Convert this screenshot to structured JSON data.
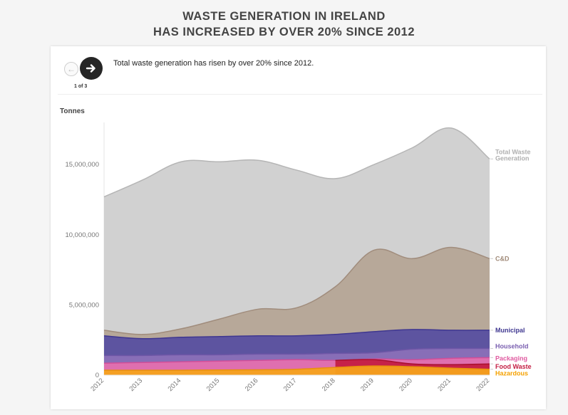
{
  "title": {
    "line1": "WASTE GENERATION IN IRELAND",
    "line2": "HAS INCREASED BY OVER 20% SINCE 2012"
  },
  "nav": {
    "prev_icon": "arrow-left-icon",
    "next_icon": "arrow-right-icon",
    "counter": "1 of 3"
  },
  "caption": "Total waste generation has risen by over 20% since 2012.",
  "chart_data": {
    "type": "area",
    "ylabel": "Tonnes",
    "xlabel": "",
    "ylim": [
      0,
      18000000
    ],
    "yticks": [
      0,
      5000000,
      10000000,
      15000000
    ],
    "ytick_labels": [
      "0",
      "5,000,000",
      "10,000,000",
      "15,000,000"
    ],
    "x": [
      "2012",
      "2013",
      "2014",
      "2015",
      "2016",
      "2017",
      "2018",
      "2019",
      "2020",
      "2021",
      "2022"
    ],
    "grid": false,
    "legend": "right-end labels",
    "series": [
      {
        "name": "Total Waste Generation",
        "color": "#cfcfcf",
        "line": "#b5b5b5",
        "values": [
          12700000,
          13900000,
          15200000,
          15200000,
          15300000,
          14600000,
          14000000,
          15000000,
          16200000,
          17600000,
          15400000
        ]
      },
      {
        "name": "C&D",
        "color": "#b5a596",
        "line": "#a08c7c",
        "values": [
          3200000,
          2900000,
          3300000,
          4000000,
          4700000,
          4800000,
          6300000,
          8900000,
          8300000,
          9100000,
          8300000
        ]
      },
      {
        "name": "Municipal",
        "color": "#574fa0",
        "line": "#3f3790",
        "values": [
          2800000,
          2600000,
          2700000,
          2750000,
          2800000,
          2800000,
          2900000,
          3100000,
          3250000,
          3200000,
          3200000
        ]
      },
      {
        "name": "Household",
        "color": "#8a70b8",
        "line": "#6e56a6",
        "values": [
          1400000,
          1400000,
          1450000,
          1450000,
          1500000,
          1500000,
          1550000,
          1600000,
          1850000,
          1900000,
          1900000
        ]
      },
      {
        "name": "Packaging",
        "color": "#e46fae",
        "line": "#d24e98",
        "values": [
          850000,
          900000,
          950000,
          1000000,
          1050000,
          1100000,
          1050000,
          1150000,
          1100000,
          1200000,
          1250000
        ]
      },
      {
        "name": "Food Waste",
        "color": "#c41e43",
        "line": "#a8102f",
        "values": [
          null,
          null,
          null,
          null,
          null,
          null,
          1050000,
          1100000,
          800000,
          750000,
          800000
        ]
      },
      {
        "name": "Hazardous",
        "color": "#f6a21c",
        "line": "#e8900c",
        "values": [
          350000,
          350000,
          350000,
          370000,
          380000,
          420000,
          550000,
          650000,
          600000,
          500000,
          420000
        ]
      }
    ],
    "label_colors": {
      "Total Waste": "#b0b0b0",
      "C&D": "#a08a78",
      "Municipal": "#3f3790",
      "Household": "#7a5fb0",
      "Packaging": "#e05aa0",
      "Food Waste": "#c41e43",
      "Hazardous": "#f5a100"
    },
    "end_labels": [
      {
        "series": "Total Waste Generation",
        "lines": [
          "Total Waste",
          "Generation"
        ]
      },
      {
        "series": "C&D",
        "lines": [
          "C&D"
        ]
      },
      {
        "series": "Municipal",
        "lines": [
          "Municipal"
        ]
      },
      {
        "series": "Household",
        "lines": [
          "Household"
        ]
      },
      {
        "series": "Packaging",
        "lines": [
          "Packaging"
        ]
      },
      {
        "series": "Food Waste",
        "lines": [
          "Food Waste"
        ]
      },
      {
        "series": "Hazardous",
        "lines": [
          "Hazardous"
        ]
      }
    ]
  }
}
